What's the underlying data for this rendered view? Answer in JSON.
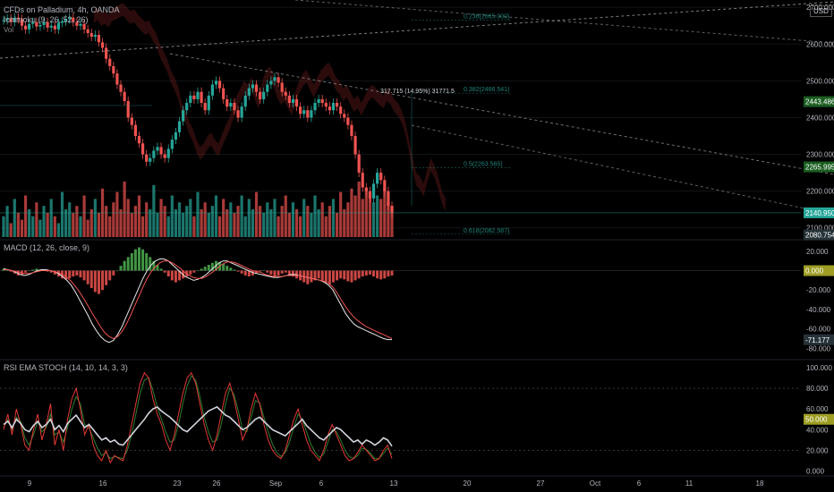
{
  "header": {
    "title": "CFDs on Palladium, 4h, OANDA",
    "indicator_main": "Ichimoku (9, 26, 52, 26)",
    "vol_label": "Vol",
    "currency": "USD"
  },
  "panes": {
    "macd_label": "MACD (12, 26, close, 9)",
    "rsi_label": "RSI EMA STOCH (14, 10, 14, 3, 3)"
  },
  "colors": {
    "up": "#26a69a",
    "down": "#ef5350",
    "macd_hist_up": "#4caf50",
    "macd_hist_down": "#ef5350",
    "macd_line": "#e8e8e8",
    "signal_line": "#ef5350",
    "rsi_main": "#d1d4dc",
    "rsi_k": "#e53935",
    "rsi_d": "#2e7d32",
    "fib": "#26a69a",
    "trend": "#9e9e9e",
    "cloud_red": "#7b1f1f",
    "cloud_green": "#1b5e20"
  },
  "chart_data": {
    "type": "candlestick",
    "title": "CFDs on Palladium, 4h, OANDA",
    "price_axis": {
      "ticks": [
        "2700.000",
        "2600.000",
        "2500.000",
        "2400.000",
        "2300.000",
        "2200.000",
        "2100.000"
      ],
      "badges": [
        {
          "label": "2443.486",
          "value": 2443.486,
          "color": "#1b5e20"
        },
        {
          "label": "2265.995",
          "value": 2265.995,
          "color": "#1b5e20"
        },
        {
          "label": "2140.950",
          "value": 2140.95,
          "color": "#26a69a"
        },
        {
          "label": "2080.754",
          "value": 2080.754,
          "color": "#263238"
        }
      ],
      "range": [
        2075,
        2720
      ]
    },
    "x_axis": {
      "ticks": [
        "9",
        "16",
        "23",
        "26",
        "Sep",
        "6",
        "13",
        "20",
        "27",
        "Oct",
        "6",
        "11",
        "18"
      ]
    },
    "annotations": {
      "measure": "317.715 (14.95%) 31771.5",
      "fib_levels": [
        {
          "label": "0.236(2665.000)",
          "value": 2665
        },
        {
          "label": "0.382(2466.541)",
          "value": 2466.541
        },
        {
          "label": "0.5(2263.565)",
          "value": 2263.565
        },
        {
          "label": "0.618(2082.587)",
          "value": 2082.587
        }
      ]
    },
    "candles_close": [
      2665,
      2670,
      2660,
      2672,
      2668,
      2650,
      2640,
      2655,
      2660,
      2648,
      2652,
      2660,
      2645,
      2650,
      2640,
      2658,
      2662,
      2668,
      2672,
      2660,
      2650,
      2655,
      2640,
      2630,
      2620,
      2625,
      2605,
      2590,
      2560,
      2540,
      2520,
      2490,
      2470,
      2445,
      2400,
      2380,
      2350,
      2330,
      2300,
      2280,
      2290,
      2310,
      2320,
      2300,
      2290,
      2315,
      2340,
      2360,
      2390,
      2420,
      2440,
      2460,
      2450,
      2470,
      2440,
      2420,
      2460,
      2490,
      2500,
      2480,
      2450,
      2430,
      2440,
      2420,
      2400,
      2430,
      2460,
      2480,
      2490,
      2470,
      2450,
      2470,
      2490,
      2500,
      2510,
      2495,
      2470,
      2460,
      2440,
      2450,
      2430,
      2410,
      2420,
      2400,
      2420,
      2440,
      2450,
      2440,
      2430,
      2420,
      2440,
      2430,
      2410,
      2400,
      2380,
      2350,
      2300,
      2250,
      2210,
      2200,
      2180,
      2220,
      2250,
      2230,
      2200,
      2160,
      2140
    ],
    "volume": [
      30,
      45,
      20,
      55,
      35,
      25,
      60,
      40,
      30,
      50,
      25,
      45,
      35,
      55,
      30,
      20,
      65,
      40,
      50,
      35,
      45,
      30,
      60,
      25,
      40,
      55,
      35,
      70,
      45,
      30,
      50,
      65,
      40,
      80,
      55,
      35,
      45,
      60,
      30,
      50,
      40,
      75,
      35,
      55,
      45,
      30,
      60,
      40,
      50,
      35,
      45,
      55,
      30,
      65,
      40,
      50,
      35,
      45,
      60,
      30,
      55,
      40,
      50,
      35,
      45,
      60,
      30,
      55,
      40,
      65,
      45,
      35,
      50,
      40,
      55,
      30,
      45,
      60,
      35,
      50,
      40,
      30,
      55,
      45,
      35,
      60,
      40,
      50,
      30,
      45,
      55,
      35,
      65,
      40,
      50,
      70,
      60,
      80,
      55,
      70,
      65,
      50,
      60,
      55,
      70,
      50,
      45
    ],
    "macd": {
      "ticks": [
        "20.000",
        "0.000",
        "-20.000",
        "-40.000",
        "-60.000",
        "-80.000"
      ],
      "range": [
        -88,
        30
      ],
      "badges": [
        {
          "label": "0.000",
          "value": 0,
          "color": "#9e9d24"
        },
        {
          "label": "-71.177",
          "value": -71.177,
          "color": "#263238"
        }
      ],
      "histogram": [
        2,
        1,
        -1,
        -3,
        -5,
        -4,
        -2,
        0,
        1,
        2,
        1,
        0,
        -1,
        -2,
        -4,
        -6,
        -8,
        -9,
        -8,
        -6,
        -5,
        -7,
        -10,
        -14,
        -18,
        -22,
        -24,
        -20,
        -15,
        -10,
        -5,
        0,
        5,
        10,
        14,
        18,
        22,
        24,
        22,
        18,
        14,
        10,
        6,
        2,
        -2,
        -6,
        -10,
        -12,
        -10,
        -8,
        -6,
        -4,
        -2,
        0,
        2,
        4,
        6,
        8,
        10,
        9,
        7,
        5,
        3,
        1,
        -1,
        -3,
        -5,
        -6,
        -5,
        -3,
        -1,
        0,
        -2,
        -4,
        -6,
        -5,
        -3,
        -2,
        -4,
        -6,
        -8,
        -10,
        -12,
        -14,
        -12,
        -10,
        -8,
        -10,
        -12,
        -14,
        -12,
        -10,
        -8,
        -9,
        -11,
        -12,
        -10,
        -8,
        -6,
        -5,
        -4,
        -6,
        -8,
        -9,
        -8,
        -6,
        -5
      ],
      "macd_line": [
        2,
        1,
        0,
        -2,
        -4,
        -5,
        -4,
        -2,
        0,
        1,
        1,
        0,
        -1,
        -3,
        -6,
        -10,
        -15,
        -22,
        -30,
        -38,
        -46,
        -55,
        -62,
        -68,
        -72,
        -74,
        -72,
        -66,
        -58,
        -48,
        -38,
        -28,
        -18,
        -8,
        0,
        6,
        10,
        12,
        12,
        10,
        6,
        2,
        -2,
        -6,
        -8,
        -10,
        -9,
        -7,
        -4,
        0,
        4,
        8,
        10,
        10,
        8,
        6,
        4,
        2,
        0,
        -2,
        -3,
        -4,
        -5,
        -6,
        -7,
        -7,
        -6,
        -5,
        -4,
        -4,
        -5,
        -6,
        -7,
        -8,
        -9,
        -10,
        -12,
        -15,
        -20,
        -28,
        -36,
        -44,
        -50,
        -55,
        -58,
        -60,
        -62,
        -64,
        -66,
        -68,
        -70,
        -71,
        -71
      ],
      "signal_line": [
        1,
        1,
        0,
        -1,
        -2,
        -3,
        -3,
        -2,
        -1,
        0,
        0,
        0,
        -1,
        -2,
        -4,
        -7,
        -11,
        -16,
        -22,
        -29,
        -36,
        -44,
        -51,
        -58,
        -64,
        -68,
        -70,
        -68,
        -63,
        -56,
        -47,
        -37,
        -27,
        -17,
        -8,
        -1,
        4,
        8,
        10,
        10,
        8,
        5,
        2,
        -2,
        -5,
        -7,
        -8,
        -8,
        -6,
        -3,
        0,
        4,
        7,
        9,
        9,
        8,
        6,
        4,
        2,
        0,
        -1,
        -2,
        -4,
        -5,
        -6,
        -6,
        -6,
        -5,
        -5,
        -5,
        -5,
        -6,
        -7,
        -8,
        -9,
        -10,
        -11,
        -13,
        -17,
        -23,
        -30,
        -37,
        -43,
        -48,
        -52,
        -55,
        -58,
        -60,
        -62,
        -64,
        -66,
        -68,
        -70
      ]
    },
    "rsi": {
      "ticks": [
        "100.000",
        "80.000",
        "60.000",
        "40.000",
        "20.000",
        "0.000"
      ],
      "range": [
        -3,
        106
      ],
      "badges": [
        {
          "label": "50.000",
          "value": 50,
          "color": "#9e9d24"
        }
      ],
      "rsi_line": [
        45,
        48,
        42,
        50,
        46,
        40,
        38,
        44,
        48,
        42,
        45,
        50,
        40,
        44,
        38,
        46,
        50,
        54,
        48,
        42,
        45,
        40,
        35,
        30,
        32,
        28,
        30,
        26,
        25,
        30,
        35,
        40,
        45,
        50,
        56,
        60,
        62,
        58,
        55,
        52,
        48,
        44,
        40,
        38,
        42,
        46,
        50,
        54,
        58,
        60,
        62,
        58,
        54,
        52,
        48,
        44,
        40,
        42,
        46,
        50,
        52,
        48,
        44,
        40,
        38,
        36,
        34,
        38,
        42,
        46,
        50,
        44,
        40,
        36,
        32,
        30,
        34,
        38,
        42,
        40,
        36,
        32,
        28,
        30,
        26,
        30,
        28,
        25,
        28,
        32,
        30,
        24
      ],
      "stoch_k": [
        40,
        55,
        35,
        60,
        45,
        25,
        20,
        40,
        55,
        30,
        45,
        65,
        25,
        40,
        20,
        50,
        70,
        80,
        60,
        35,
        45,
        25,
        15,
        10,
        20,
        8,
        15,
        12,
        10,
        25,
        45,
        65,
        85,
        95,
        90,
        70,
        55,
        45,
        30,
        20,
        35,
        55,
        75,
        90,
        95,
        85,
        65,
        45,
        30,
        20,
        35,
        55,
        75,
        85,
        70,
        50,
        30,
        40,
        60,
        75,
        65,
        45,
        30,
        20,
        15,
        12,
        20,
        35,
        50,
        60,
        45,
        30,
        20,
        15,
        10,
        20,
        35,
        45,
        35,
        25,
        15,
        10,
        12,
        18,
        25,
        20,
        15,
        10,
        12,
        20,
        25,
        12
      ],
      "stoch_d": [
        42,
        50,
        40,
        52,
        48,
        32,
        25,
        35,
        48,
        38,
        42,
        55,
        35,
        38,
        28,
        42,
        60,
        72,
        65,
        45,
        42,
        32,
        22,
        15,
        18,
        12,
        14,
        13,
        12,
        20,
        35,
        55,
        75,
        88,
        90,
        78,
        62,
        50,
        38,
        28,
        30,
        45,
        65,
        82,
        92,
        88,
        72,
        52,
        38,
        28,
        30,
        45,
        65,
        80,
        74,
        58,
        40,
        38,
        52,
        68,
        66,
        52,
        38,
        26,
        18,
        14,
        18,
        28,
        42,
        55,
        50,
        38,
        26,
        18,
        13,
        16,
        28,
        40,
        38,
        30,
        20,
        14,
        12,
        15,
        22,
        21,
        17,
        12,
        12,
        17,
        22,
        16
      ]
    }
  }
}
